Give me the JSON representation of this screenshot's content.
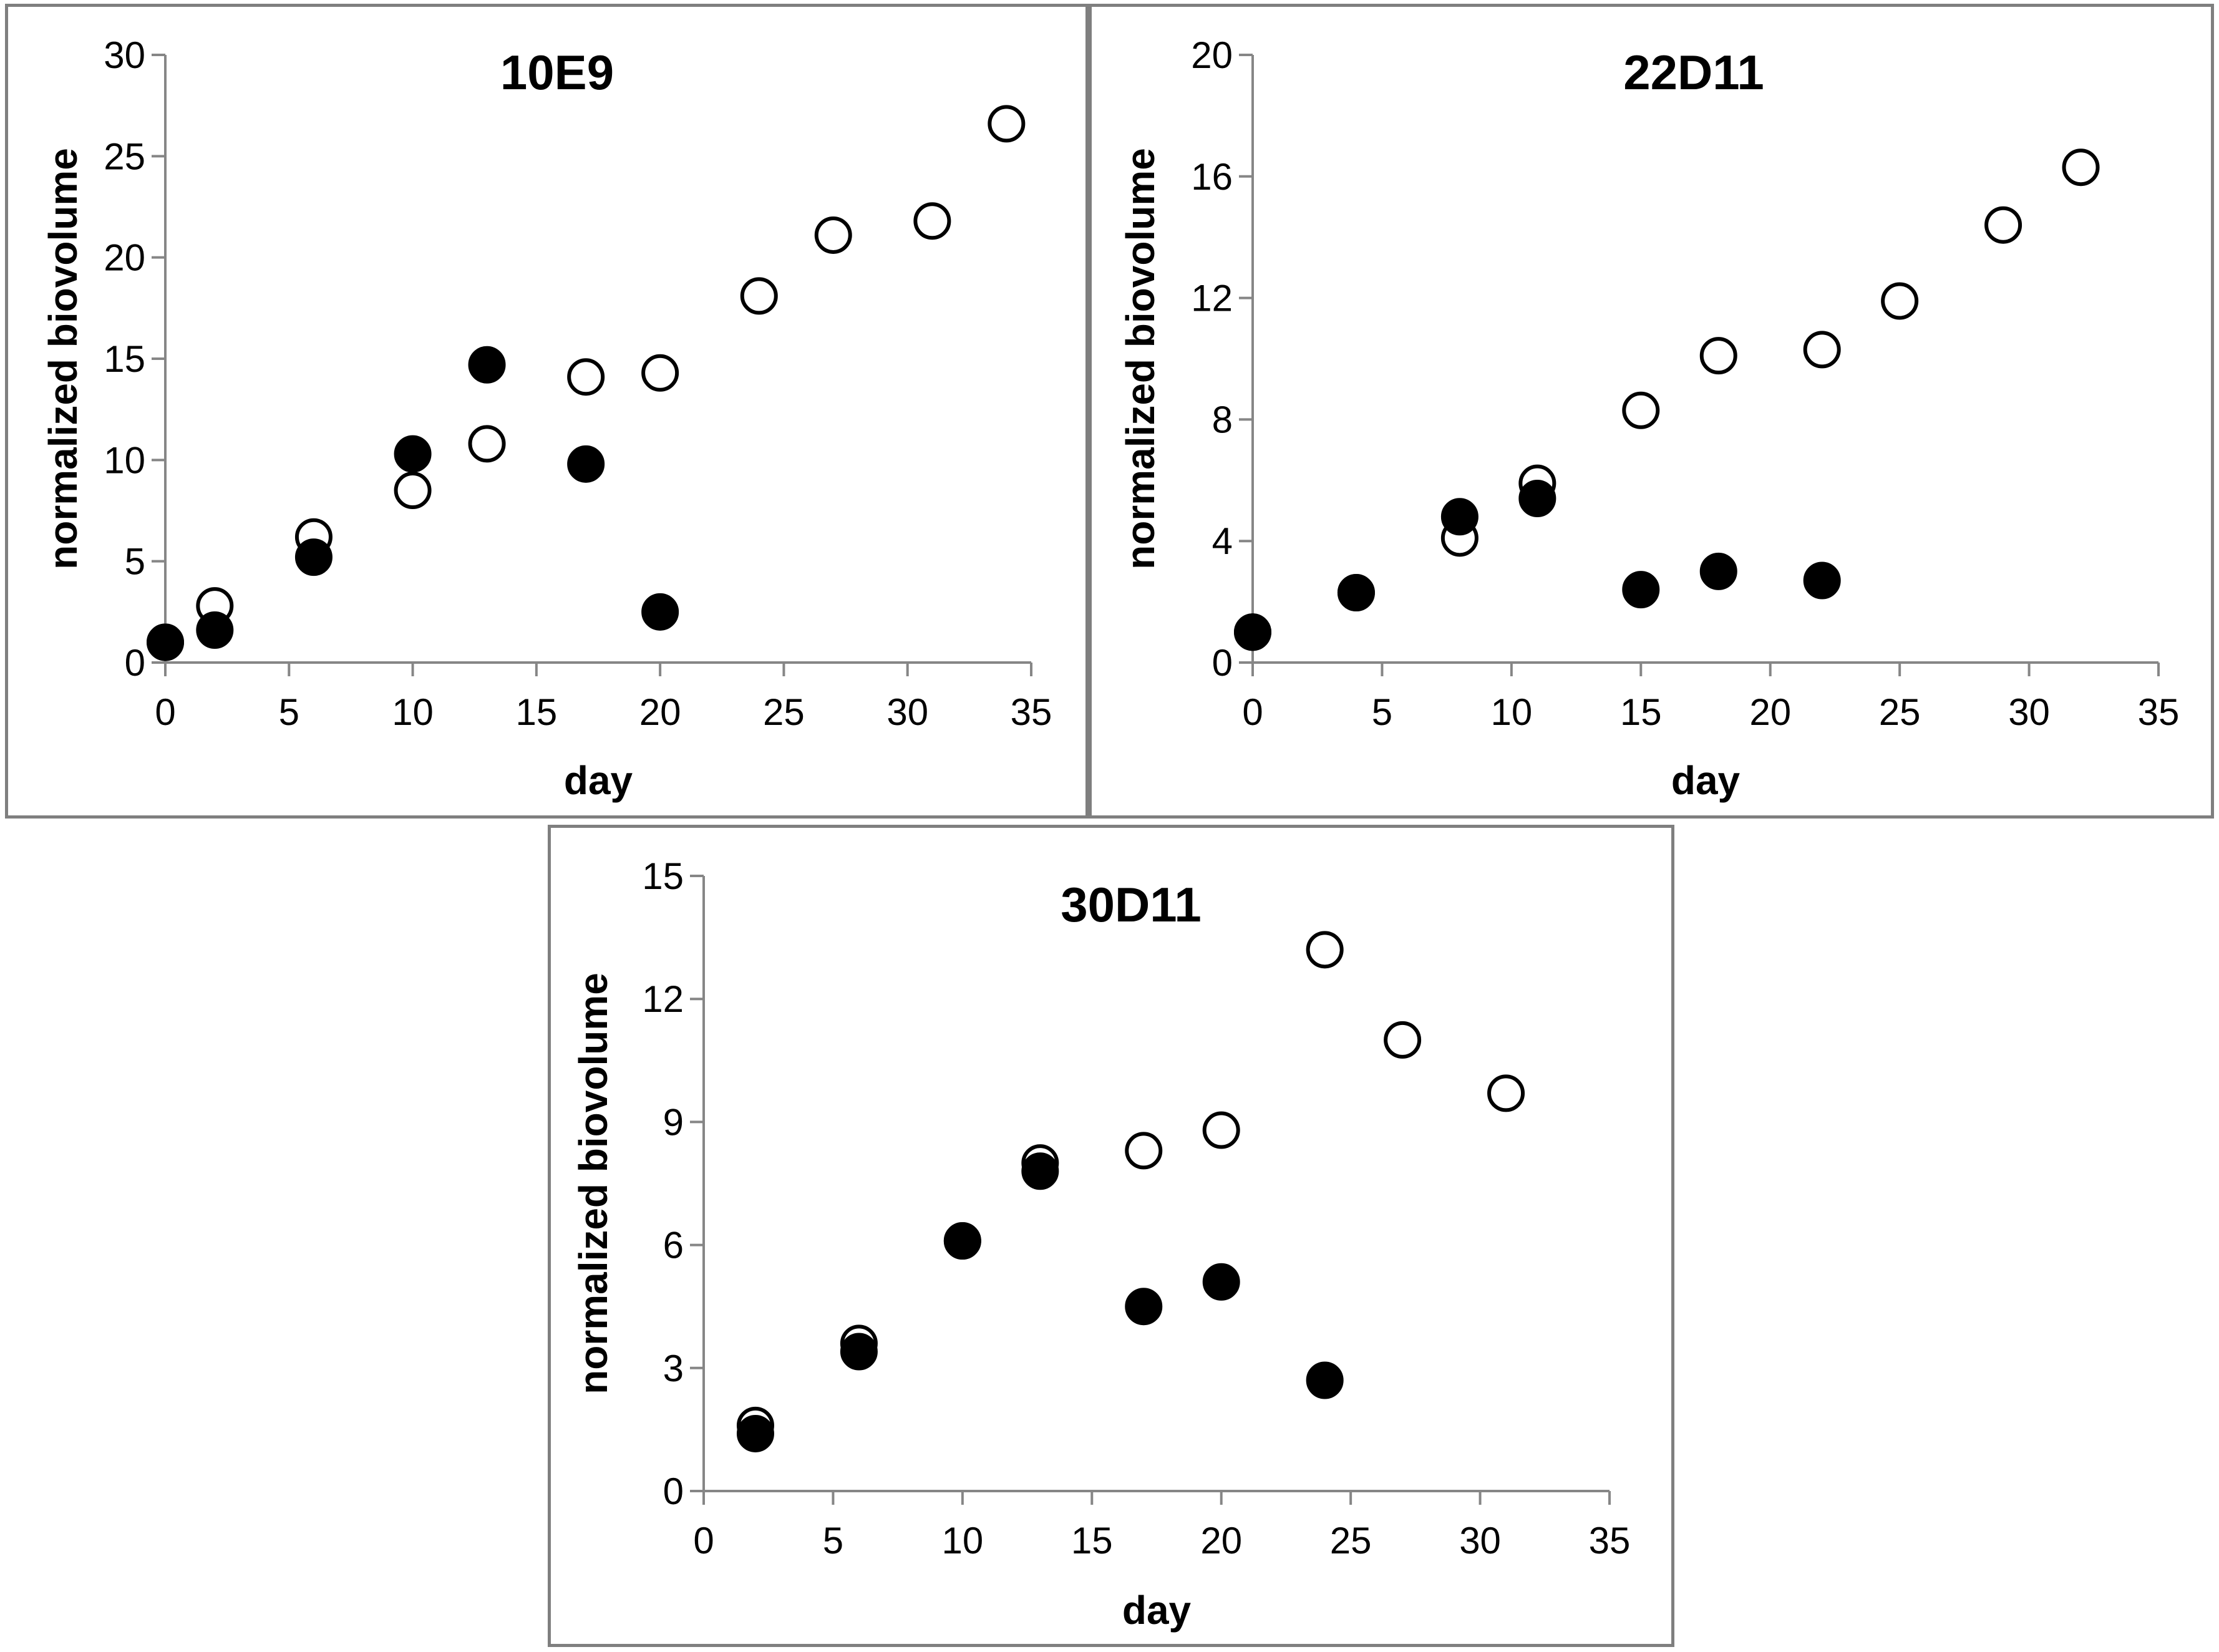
{
  "chart_data": [
    {
      "type": "scatter",
      "title": "10E9",
      "xlabel": "day",
      "ylabel": "normalized biovolume",
      "xlim": [
        0,
        35
      ],
      "ylim": [
        0,
        30
      ],
      "xticks": [
        "0",
        "5",
        "10",
        "15",
        "20",
        "25",
        "30",
        "35"
      ],
      "yticks": [
        "0",
        "5",
        "10",
        "15",
        "20",
        "25",
        "30"
      ],
      "grid": false,
      "series": [
        {
          "marker": "open-circle",
          "x": [
            0,
            2,
            6,
            10,
            13,
            17,
            20,
            24,
            27,
            31,
            34
          ],
          "y": [
            1.0,
            2.8,
            6.2,
            8.5,
            10.8,
            14.1,
            14.3,
            18.1,
            21.1,
            21.8,
            26.6
          ]
        },
        {
          "marker": "filled-circle",
          "x": [
            0,
            2,
            6,
            10,
            13,
            17,
            20
          ],
          "y": [
            1.0,
            1.6,
            5.2,
            10.3,
            14.7,
            9.8,
            2.5
          ]
        }
      ]
    },
    {
      "type": "scatter",
      "title": "22D11",
      "xlabel": "day",
      "ylabel": "normalized biovolume",
      "xlim": [
        0,
        35
      ],
      "ylim": [
        0,
        20
      ],
      "xticks": [
        "0",
        "5",
        "10",
        "15",
        "20",
        "25",
        "30",
        "35"
      ],
      "yticks": [
        "0",
        "4",
        "8",
        "12",
        "16",
        "20"
      ],
      "grid": false,
      "series": [
        {
          "marker": "open-circle",
          "x": [
            0,
            4,
            8,
            11,
            15,
            18,
            22,
            25,
            29,
            32
          ],
          "y": [
            1.0,
            2.3,
            4.1,
            5.9,
            8.3,
            10.1,
            10.3,
            11.9,
            14.4,
            16.3
          ]
        },
        {
          "marker": "filled-circle",
          "x": [
            0,
            4,
            8,
            11,
            15,
            18,
            22
          ],
          "y": [
            1.0,
            2.3,
            4.8,
            5.4,
            2.4,
            3.0,
            2.7
          ]
        }
      ]
    },
    {
      "type": "scatter",
      "title": "30D11",
      "xlabel": "day",
      "ylabel": "normalized biovolume",
      "xlim": [
        0,
        35
      ],
      "ylim": [
        0,
        15
      ],
      "xticks": [
        "0",
        "5",
        "10",
        "15",
        "20",
        "25",
        "30",
        "35"
      ],
      "yticks": [
        "0",
        "3",
        "6",
        "9",
        "12",
        "15"
      ],
      "grid": false,
      "series": [
        {
          "marker": "open-circle",
          "x": [
            2,
            6,
            10,
            13,
            17,
            20,
            24,
            27,
            31
          ],
          "y": [
            1.6,
            3.6,
            6.1,
            8.0,
            8.3,
            8.8,
            13.2,
            11.0,
            9.7
          ]
        },
        {
          "marker": "filled-circle",
          "x": [
            2,
            6,
            10,
            13,
            17,
            20,
            24
          ],
          "y": [
            1.4,
            3.4,
            6.1,
            7.8,
            4.5,
            5.1,
            2.7
          ]
        }
      ]
    }
  ]
}
